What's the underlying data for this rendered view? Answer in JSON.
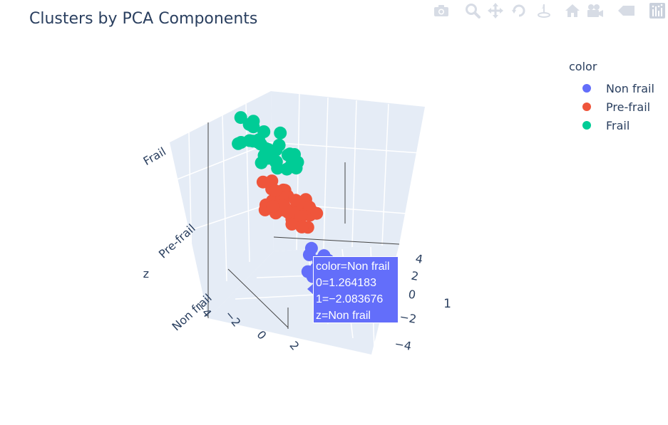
{
  "chart_data": {
    "type": "scatter",
    "title": "Clusters by PCA Components",
    "axes": {
      "x": {
        "label": "0",
        "ticks": [
          "−4",
          "−2",
          "0",
          "2"
        ]
      },
      "y": {
        "label": "1",
        "ticks": [
          "4",
          "2",
          "0",
          "−2",
          "−4"
        ]
      },
      "z": {
        "label": "z",
        "ticks": [
          "Non frail",
          "Pre-frail",
          "Frail"
        ]
      }
    },
    "legend": {
      "title": "color",
      "placement": "top-right"
    },
    "series": [
      {
        "name": "Non frail",
        "color": "#636efa",
        "points": [
          [
            1.26,
            -2.08
          ],
          [
            1.5,
            -1.8
          ],
          [
            1.0,
            -1.5
          ],
          [
            0.8,
            -2.2
          ],
          [
            1.2,
            -1.2
          ],
          [
            0.6,
            -1.9
          ],
          [
            1.4,
            -2.5
          ],
          [
            0.9,
            -2.7
          ],
          [
            1.6,
            -1.4
          ],
          [
            0.5,
            -1.4
          ],
          [
            1.1,
            -2.3
          ],
          [
            0.7,
            -1.0
          ],
          [
            1.3,
            -0.9
          ],
          [
            1.8,
            -2.0
          ],
          [
            0.4,
            -2.4
          ],
          [
            1.0,
            -2.9
          ],
          [
            1.7,
            -2.8
          ],
          [
            0.2,
            -1.8
          ],
          [
            1.9,
            -1.6
          ],
          [
            0.3,
            -1.1
          ],
          [
            1.5,
            -1.1
          ],
          [
            0.8,
            -2.6
          ],
          [
            1.1,
            -1.7
          ],
          [
            1.4,
            -0.6
          ],
          [
            0.6,
            -0.7
          ],
          [
            1.2,
            -3.1
          ],
          [
            0.0,
            -2.0
          ],
          [
            2.0,
            -2.4
          ],
          [
            0.9,
            -0.4
          ],
          [
            1.6,
            -3.0
          ]
        ]
      },
      {
        "name": "Pre-frail",
        "color": "#ef553b",
        "points": [
          [
            0.5,
            0.8
          ],
          [
            0.8,
            1.2
          ],
          [
            0.2,
            1.0
          ],
          [
            1.0,
            0.6
          ],
          [
            0.6,
            1.6
          ],
          [
            -0.2,
            0.9
          ],
          [
            1.2,
            1.4
          ],
          [
            0.4,
            0.3
          ],
          [
            0.9,
            0.1
          ],
          [
            -0.4,
            1.3
          ],
          [
            1.4,
            0.9
          ],
          [
            0.1,
            1.8
          ],
          [
            0.7,
            2.0
          ],
          [
            -0.6,
            0.7
          ],
          [
            1.6,
            0.4
          ],
          [
            0.3,
            2.3
          ],
          [
            1.1,
            2.2
          ],
          [
            -0.1,
            0.2
          ],
          [
            1.8,
            1.1
          ],
          [
            -0.8,
            1.5
          ],
          [
            0.5,
            -0.2
          ],
          [
            1.3,
            -0.1
          ],
          [
            0.0,
            2.6
          ],
          [
            0.9,
            2.6
          ],
          [
            -0.3,
            1.9
          ],
          [
            1.7,
            1.8
          ],
          [
            0.6,
            0.6
          ],
          [
            1.0,
            1.0
          ],
          [
            0.2,
            1.4
          ],
          [
            -1.0,
            1.0
          ],
          [
            2.0,
            0.7
          ],
          [
            0.4,
            2.9
          ],
          [
            1.5,
            2.5
          ],
          [
            -0.5,
            0.3
          ],
          [
            0.8,
            -0.4
          ],
          [
            1.9,
            0.0
          ],
          [
            0.1,
            -0.3
          ],
          [
            1.2,
            3.0
          ],
          [
            -0.7,
            2.3
          ],
          [
            2.2,
            1.4
          ]
        ]
      },
      {
        "name": "Frail",
        "color": "#00cc96",
        "points": [
          [
            -0.5,
            2.5
          ],
          [
            0.0,
            2.8
          ],
          [
            -1.0,
            2.2
          ],
          [
            0.5,
            2.4
          ],
          [
            -0.3,
            3.2
          ],
          [
            1.0,
            2.6
          ],
          [
            -1.5,
            2.9
          ],
          [
            0.3,
            3.5
          ],
          [
            -0.8,
            3.6
          ],
          [
            1.3,
            3.0
          ],
          [
            -1.8,
            2.4
          ],
          [
            0.8,
            3.8
          ],
          [
            -0.2,
            1.8
          ],
          [
            1.6,
            2.2
          ],
          [
            -1.2,
            1.6
          ],
          [
            0.6,
            1.5
          ],
          [
            -2.0,
            3.3
          ],
          [
            1.9,
            3.4
          ],
          [
            0.1,
            4.0
          ],
          [
            -0.6,
            1.2
          ],
          [
            2.1,
            2.8
          ],
          [
            1.1,
            1.4
          ],
          [
            -1.4,
            3.9
          ],
          [
            1.5,
            3.9
          ],
          [
            -2.3,
            2.0
          ],
          [
            0.4,
            1.0
          ],
          [
            2.4,
            2.3
          ],
          [
            0.9,
            4.2
          ],
          [
            -0.9,
            4.1
          ],
          [
            1.8,
            1.7
          ]
        ]
      }
    ],
    "hover": {
      "lines": [
        "color=Non frail",
        "0=1.264183",
        "1=−2.083676",
        "z=Non frail"
      ]
    }
  }
}
